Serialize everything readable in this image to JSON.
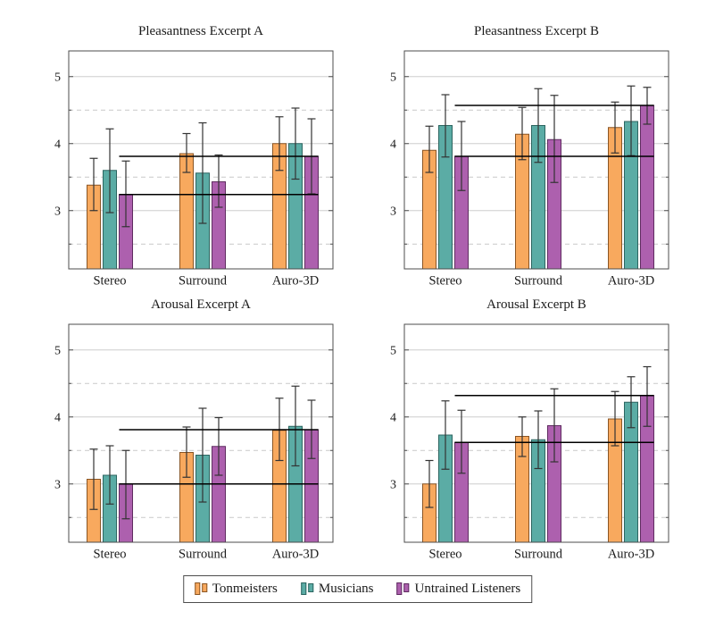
{
  "figure": {
    "background": "#ffffff"
  },
  "colors": {
    "grid": "#cdcdcd",
    "grid_dashed": "#c9c9c9",
    "axis": "#4d4d4d",
    "error_bar": "#333333",
    "ref_line": "#000000",
    "text": "#1a1a1a"
  },
  "legend": {
    "position": "bottom-center",
    "items": [
      {
        "label": "Tonmeisters",
        "color": "#F8A95E",
        "border": "#8A5524"
      },
      {
        "label": "Musicians",
        "color": "#5BACA5",
        "border": "#2C6560"
      },
      {
        "label": "Untrained Listeners",
        "color": "#AD60AE",
        "border": "#5F2C60"
      }
    ]
  },
  "chart_data": [
    {
      "type": "bar",
      "title": "Pleasantness Excerpt A",
      "categories": [
        "Stereo",
        "Surround",
        "Auro-3D"
      ],
      "ylim": [
        2.13,
        5.38
      ],
      "yticks": [
        3,
        4,
        5
      ],
      "yticks_minor": [
        2.5,
        3.5,
        4.5
      ],
      "grid": true,
      "series": [
        {
          "name": "Tonmeisters",
          "values": [
            3.38,
            3.85,
            4.0
          ],
          "err_lo": [
            3.0,
            3.57,
            3.6
          ],
          "err_hi": [
            3.78,
            4.15,
            4.4
          ]
        },
        {
          "name": "Musicians",
          "values": [
            3.6,
            3.56,
            4.0
          ],
          "err_lo": [
            2.97,
            2.81,
            3.47
          ],
          "err_hi": [
            4.22,
            4.31,
            4.53
          ]
        },
        {
          "name": "Untrained Listeners",
          "values": [
            3.24,
            3.43,
            3.81
          ],
          "err_lo": [
            2.76,
            3.05,
            3.25
          ],
          "err_hi": [
            3.74,
            3.83,
            4.37
          ]
        }
      ],
      "ref_lines": [
        3.24,
        3.81
      ]
    },
    {
      "type": "bar",
      "title": "Pleasantness Excerpt B",
      "categories": [
        "Stereo",
        "Surround",
        "Auro-3D"
      ],
      "ylim": [
        2.13,
        5.38
      ],
      "yticks": [
        3,
        4,
        5
      ],
      "yticks_minor": [
        2.5,
        3.5,
        4.5
      ],
      "grid": true,
      "series": [
        {
          "name": "Tonmeisters",
          "values": [
            3.9,
            4.14,
            4.24
          ],
          "err_lo": [
            3.57,
            3.76,
            3.86
          ],
          "err_hi": [
            4.26,
            4.54,
            4.62
          ]
        },
        {
          "name": "Musicians",
          "values": [
            4.27,
            4.27,
            4.33
          ],
          "err_lo": [
            3.8,
            3.72,
            3.82
          ],
          "err_hi": [
            4.73,
            4.82,
            4.86
          ]
        },
        {
          "name": "Untrained Listeners",
          "values": [
            3.81,
            4.06,
            4.57
          ],
          "err_lo": [
            3.3,
            3.42,
            4.29
          ],
          "err_hi": [
            4.33,
            4.72,
            4.84
          ]
        }
      ],
      "ref_lines": [
        3.81,
        4.57
      ]
    },
    {
      "type": "bar",
      "title": "Arousal Excerpt A",
      "categories": [
        "Stereo",
        "Surround",
        "Auro-3D"
      ],
      "ylim": [
        2.13,
        5.38
      ],
      "yticks": [
        3,
        4,
        5
      ],
      "yticks_minor": [
        2.5,
        3.5,
        4.5
      ],
      "grid": true,
      "series": [
        {
          "name": "Tonmeisters",
          "values": [
            3.07,
            3.47,
            3.8
          ],
          "err_lo": [
            2.62,
            3.1,
            3.35
          ],
          "err_hi": [
            3.52,
            3.85,
            4.28
          ]
        },
        {
          "name": "Musicians",
          "values": [
            3.13,
            3.43,
            3.86
          ],
          "err_lo": [
            2.7,
            2.73,
            3.27
          ],
          "err_hi": [
            3.57,
            4.13,
            4.46
          ]
        },
        {
          "name": "Untrained Listeners",
          "values": [
            3.0,
            3.56,
            3.81
          ],
          "err_lo": [
            2.48,
            3.13,
            3.38
          ],
          "err_hi": [
            3.5,
            3.99,
            4.25
          ]
        }
      ],
      "ref_lines": [
        3.0,
        3.81
      ]
    },
    {
      "type": "bar",
      "title": "Arousal Excerpt B",
      "categories": [
        "Stereo",
        "Surround",
        "Auro-3D"
      ],
      "ylim": [
        2.13,
        5.38
      ],
      "yticks": [
        3,
        4,
        5
      ],
      "yticks_minor": [
        2.5,
        3.5,
        4.5
      ],
      "grid": true,
      "series": [
        {
          "name": "Tonmeisters",
          "values": [
            3.0,
            3.71,
            3.97
          ],
          "err_lo": [
            2.65,
            3.41,
            3.57
          ],
          "err_hi": [
            3.35,
            4.0,
            4.38
          ]
        },
        {
          "name": "Musicians",
          "values": [
            3.73,
            3.66,
            4.22
          ],
          "err_lo": [
            3.22,
            3.23,
            3.84
          ],
          "err_hi": [
            4.24,
            4.09,
            4.6
          ]
        },
        {
          "name": "Untrained Listeners",
          "values": [
            3.62,
            3.87,
            4.32
          ],
          "err_lo": [
            3.16,
            3.33,
            3.86
          ],
          "err_hi": [
            4.1,
            4.42,
            4.75
          ]
        }
      ],
      "ref_lines": [
        3.62,
        4.32
      ]
    }
  ]
}
